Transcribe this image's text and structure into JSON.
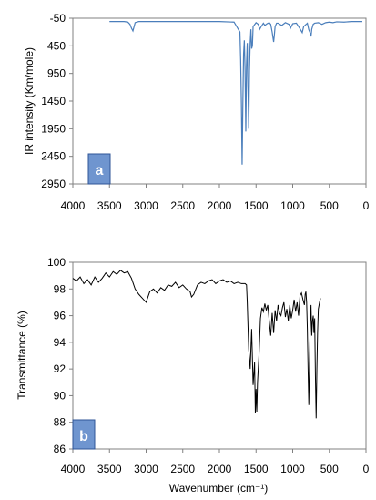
{
  "chart_data": [
    {
      "type": "line",
      "panel_label": "a",
      "ylabel": "IR intensity (Km/mole)",
      "xlabel": "",
      "xlim": [
        4000,
        0
      ],
      "ylim": [
        -50,
        2950
      ],
      "y_inverted": true,
      "x_ticks": [
        "4000",
        "3500",
        "3000",
        "2500",
        "2000",
        "1500",
        "1000",
        "500",
        "0"
      ],
      "y_ticks": [
        "-50",
        "450",
        "950",
        "1450",
        "1950",
        "2450",
        "2950"
      ],
      "grid": false,
      "legend": "none",
      "line_color": "#4a7ebb",
      "label_box_color": "#6f95cf",
      "series": [
        {
          "x": [
            3500,
            3300,
            3250,
            3220,
            3200,
            3180,
            3150,
            3100,
            3000,
            2500,
            2000,
            1800,
            1720,
            1710,
            1700,
            1690,
            1680,
            1670,
            1660,
            1650,
            1640,
            1630,
            1620,
            1610,
            1600,
            1590,
            1580,
            1570,
            1560,
            1550,
            1540,
            1500,
            1470,
            1450,
            1420,
            1400,
            1380,
            1350,
            1320,
            1300,
            1280,
            1260,
            1250,
            1240,
            1220,
            1200,
            1150,
            1100,
            1050,
            1030,
            1000,
            950,
            900,
            870,
            850,
            800,
            780,
            760,
            750,
            740,
            720,
            700,
            650,
            600,
            550,
            500,
            450,
            400,
            300,
            200,
            100,
            50
          ],
          "y": [
            10,
            10,
            20,
            60,
            130,
            180,
            30,
            10,
            10,
            10,
            10,
            20,
            200,
            700,
            1500,
            2600,
            1500,
            600,
            350,
            900,
            2000,
            800,
            400,
            1200,
            1950,
            900,
            400,
            150,
            500,
            450,
            100,
            30,
            60,
            150,
            80,
            40,
            80,
            50,
            30,
            60,
            200,
            380,
            250,
            100,
            40,
            40,
            80,
            30,
            60,
            130,
            50,
            40,
            140,
            210,
            100,
            40,
            160,
            220,
            280,
            150,
            60,
            40,
            30,
            60,
            30,
            20,
            30,
            15,
            20,
            10,
            10,
            10
          ]
        }
      ]
    },
    {
      "type": "line",
      "panel_label": "b",
      "ylabel": "Transmittance (%)",
      "xlabel": "Wavenumber (cm⁻¹)",
      "xlim": [
        4000,
        0
      ],
      "ylim": [
        86,
        100
      ],
      "x_ticks": [
        "4000",
        "3500",
        "3000",
        "2500",
        "2000",
        "1500",
        "1000",
        "500",
        "0"
      ],
      "y_ticks": [
        "100",
        "98",
        "96",
        "94",
        "92",
        "90",
        "88",
        "86"
      ],
      "grid": false,
      "legend": "none",
      "line_color": "#000000",
      "label_box_color": "#6f95cf",
      "series": [
        {
          "x": [
            4000,
            3950,
            3900,
            3850,
            3800,
            3750,
            3700,
            3650,
            3600,
            3550,
            3500,
            3450,
            3400,
            3350,
            3300,
            3250,
            3200,
            3150,
            3100,
            3050,
            3000,
            2950,
            2900,
            2850,
            2800,
            2750,
            2700,
            2650,
            2600,
            2550,
            2500,
            2450,
            2400,
            2380,
            2350,
            2300,
            2250,
            2200,
            2150,
            2100,
            2050,
            2000,
            1950,
            1900,
            1850,
            1800,
            1750,
            1700,
            1650,
            1630,
            1620,
            1600,
            1580,
            1560,
            1540,
            1520,
            1510,
            1500,
            1490,
            1480,
            1460,
            1440,
            1420,
            1400,
            1380,
            1360,
            1340,
            1320,
            1300,
            1280,
            1260,
            1240,
            1220,
            1200,
            1180,
            1160,
            1140,
            1120,
            1100,
            1080,
            1060,
            1040,
            1020,
            1000,
            980,
            960,
            940,
            920,
            900,
            880,
            860,
            840,
            830,
            820,
            810,
            800,
            790,
            780,
            770,
            760,
            750,
            740,
            730,
            720,
            710,
            700,
            690,
            680,
            670,
            660,
            650,
            640,
            630,
            620
          ],
          "y": [
            98.8,
            98.6,
            98.9,
            98.4,
            98.7,
            98.3,
            98.9,
            98.5,
            98.8,
            99.2,
            98.9,
            99.3,
            99.1,
            99.4,
            99.2,
            99.3,
            98.8,
            98.0,
            97.6,
            97.3,
            97.0,
            97.8,
            98.0,
            97.7,
            98.1,
            97.9,
            98.3,
            98.2,
            98.5,
            98.1,
            98.3,
            98.0,
            97.8,
            97.4,
            97.6,
            98.3,
            98.5,
            98.4,
            98.6,
            98.7,
            98.4,
            98.6,
            98.7,
            98.5,
            98.6,
            98.4,
            98.5,
            98.4,
            98.4,
            98.3,
            97.0,
            93.5,
            92.0,
            95.0,
            90.8,
            92.5,
            88.7,
            90.5,
            88.8,
            91.0,
            93.0,
            95.8,
            96.6,
            96.3,
            96.9,
            96.4,
            96.8,
            95.6,
            94.5,
            96.2,
            94.7,
            96.4,
            95.6,
            96.8,
            96.2,
            96.0,
            96.6,
            97.0,
            95.9,
            96.5,
            95.6,
            96.8,
            95.8,
            96.4,
            97.2,
            96.3,
            97.0,
            96.0,
            97.5,
            97.7,
            97.2,
            96.8,
            97.6,
            97.8,
            97.0,
            95.0,
            92.0,
            89.3,
            92.5,
            95.5,
            96.8,
            94.5,
            95.6,
            96.0,
            94.7,
            95.8,
            91.5,
            88.3,
            92.0,
            94.8,
            96.5,
            96.8,
            97.1,
            97.3
          ]
        }
      ]
    }
  ]
}
